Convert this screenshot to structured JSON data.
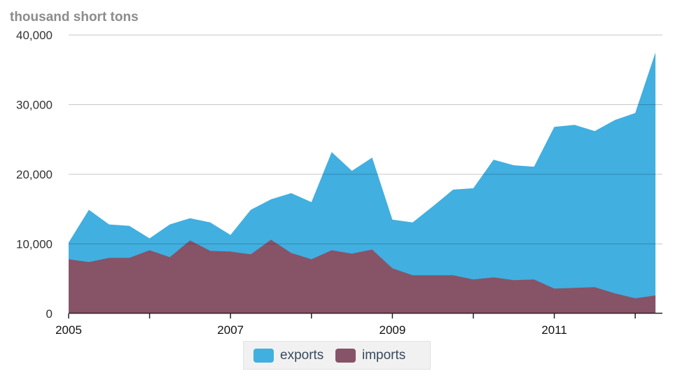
{
  "chart_data": {
    "type": "area",
    "unit_label": "thousand short tons",
    "x_ticks": [
      "2005",
      "2007",
      "2009",
      "2011"
    ],
    "y_ticks": [
      "0",
      "10,000",
      "20,000",
      "30,000",
      "40,000"
    ],
    "ylim": [
      0,
      40000
    ],
    "grid": true,
    "legend_position": "bottom-center",
    "x": [
      "2005-Q1",
      "2005-Q2",
      "2005-Q3",
      "2005-Q4",
      "2006-Q1",
      "2006-Q2",
      "2006-Q3",
      "2006-Q4",
      "2007-Q1",
      "2007-Q2",
      "2007-Q3",
      "2007-Q4",
      "2008-Q1",
      "2008-Q2",
      "2008-Q3",
      "2008-Q4",
      "2009-Q1",
      "2009-Q2",
      "2009-Q3",
      "2009-Q4",
      "2010-Q1",
      "2010-Q2",
      "2010-Q3",
      "2010-Q4",
      "2011-Q1",
      "2011-Q2",
      "2011-Q3",
      "2011-Q4",
      "2012-Q1",
      "2012-Q2"
    ],
    "series": [
      {
        "name": "exports",
        "color": "#41afe0",
        "values": [
          10200,
          14900,
          12800,
          12600,
          10800,
          12800,
          13700,
          13100,
          11300,
          14900,
          16400,
          17300,
          16000,
          23200,
          20500,
          22400,
          13500,
          13100,
          15400,
          17800,
          18000,
          22100,
          21300,
          21100,
          26800,
          27100,
          26200,
          27800,
          28800,
          37500
        ]
      },
      {
        "name": "imports",
        "color": "#875367",
        "values": [
          7800,
          7400,
          8000,
          8000,
          9100,
          8100,
          10500,
          9000,
          8900,
          8500,
          10600,
          8700,
          7800,
          9100,
          8600,
          9200,
          6500,
          5500,
          5500,
          5500,
          4900,
          5200,
          4800,
          4900,
          3600,
          3700,
          3800,
          2900,
          2200,
          2600
        ]
      }
    ]
  }
}
